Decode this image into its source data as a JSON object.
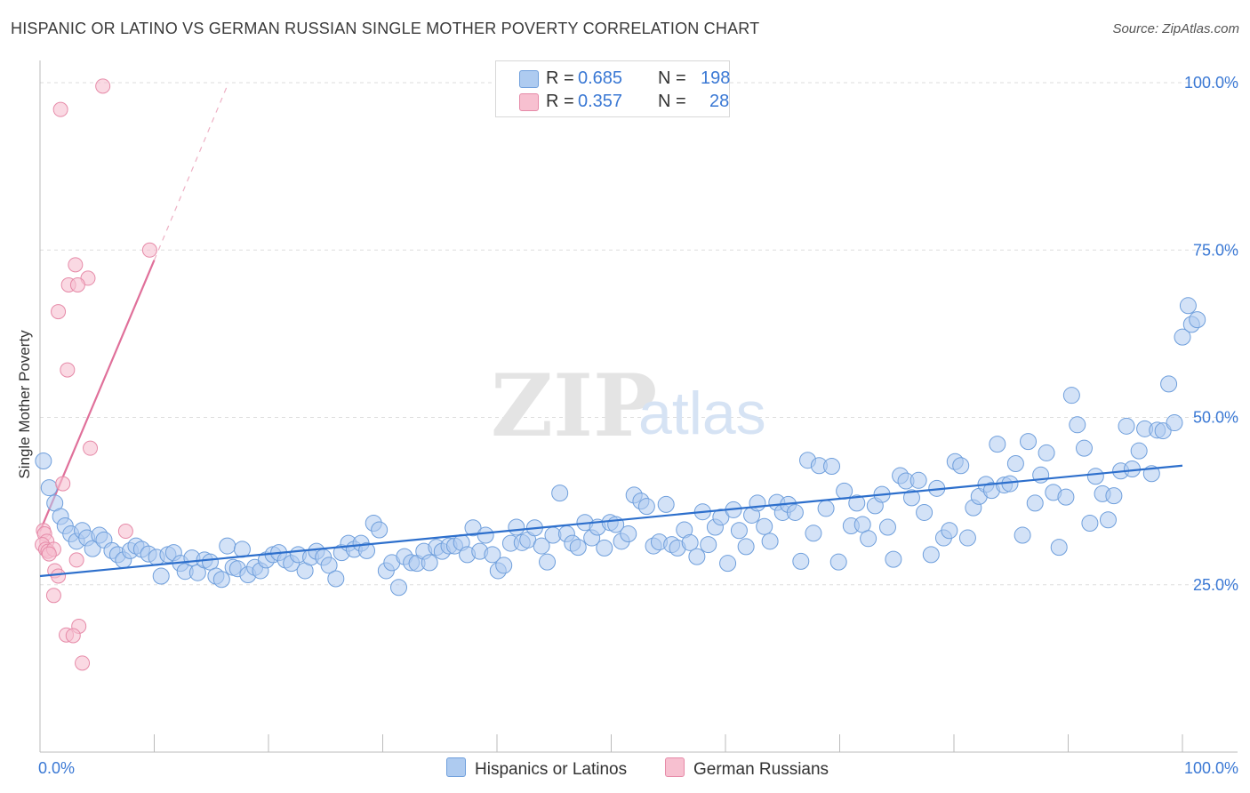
{
  "title": "HISPANIC OR LATINO VS GERMAN RUSSIAN SINGLE MOTHER POVERTY CORRELATION CHART",
  "source": "Source: ZipAtlas.com",
  "watermark": {
    "zip": "ZIP",
    "atlas": "atlas"
  },
  "colors": {
    "blue_fill": "#aecbf0",
    "blue_stroke": "#6f9fdc",
    "blue_line": "#2d6fcc",
    "pink_fill": "#f7c0d0",
    "pink_stroke": "#e68aa8",
    "pink_line": "#e0709a",
    "tick_text": "#3a78d4",
    "grid": "#dddddd"
  },
  "legend": {
    "rows": [
      {
        "r_label": "R =",
        "r_value": "0.685",
        "n_label": "N =",
        "n_value": "198",
        "series": "blue"
      },
      {
        "r_label": "R =",
        "r_value": "0.357",
        "n_label": "N =",
        "n_value": "28",
        "series": "pink"
      }
    ]
  },
  "bottom_legend": {
    "items": [
      {
        "label": "Hispanics or Latinos",
        "series": "blue"
      },
      {
        "label": "German Russians",
        "series": "pink"
      }
    ]
  },
  "chart_data": {
    "type": "scatter",
    "title": "HISPANIC OR LATINO VS GERMAN RUSSIAN SINGLE MOTHER POVERTY CORRELATION CHART",
    "xlabel": "",
    "ylabel": "Single Mother Poverty",
    "xlim": [
      0,
      100
    ],
    "ylim": [
      0,
      102
    ],
    "x_tick_labels": [
      "0.0%",
      "100.0%"
    ],
    "y_ticks": [
      25,
      50,
      75,
      100
    ],
    "y_tick_labels": [
      "25.0%",
      "50.0%",
      "75.0%",
      "100.0%"
    ],
    "grid": true,
    "series": [
      {
        "name": "Hispanics or Latinos",
        "color": "blue",
        "R": 0.685,
        "N": 198,
        "trend": {
          "x": [
            0,
            100
          ],
          "y": [
            26.3,
            42.8
          ]
        },
        "points": [
          [
            0.3,
            43.5
          ],
          [
            0.8,
            39.5
          ],
          [
            1.3,
            37.2
          ],
          [
            1.8,
            35.2
          ],
          [
            2.2,
            33.8
          ],
          [
            2.7,
            32.6
          ],
          [
            3.2,
            31.5
          ],
          [
            3.7,
            33.1
          ],
          [
            4.1,
            32.0
          ],
          [
            4.6,
            30.4
          ],
          [
            5.2,
            32.4
          ],
          [
            5.6,
            31.7
          ],
          [
            6.3,
            30.1
          ],
          [
            6.8,
            29.5
          ],
          [
            7.3,
            28.7
          ],
          [
            7.9,
            30.1
          ],
          [
            8.4,
            30.8
          ],
          [
            8.9,
            30.3
          ],
          [
            9.5,
            29.6
          ],
          [
            10.2,
            29.1
          ],
          [
            10.6,
            26.3
          ],
          [
            11.2,
            29.5
          ],
          [
            11.7,
            29.8
          ],
          [
            12.3,
            28.2
          ],
          [
            12.7,
            27.0
          ],
          [
            13.3,
            29.0
          ],
          [
            13.8,
            26.8
          ],
          [
            14.4,
            28.7
          ],
          [
            14.9,
            28.4
          ],
          [
            15.4,
            26.3
          ],
          [
            15.9,
            25.8
          ],
          [
            16.4,
            30.8
          ],
          [
            16.9,
            27.6
          ],
          [
            17.3,
            27.4
          ],
          [
            17.7,
            30.3
          ],
          [
            18.2,
            26.5
          ],
          [
            18.8,
            27.6
          ],
          [
            19.3,
            27.1
          ],
          [
            19.8,
            28.7
          ],
          [
            20.4,
            29.5
          ],
          [
            20.9,
            29.8
          ],
          [
            21.5,
            28.7
          ],
          [
            22.0,
            28.2
          ],
          [
            22.6,
            29.5
          ],
          [
            23.2,
            27.1
          ],
          [
            23.7,
            29.1
          ],
          [
            24.2,
            30.0
          ],
          [
            24.8,
            29.1
          ],
          [
            25.3,
            27.9
          ],
          [
            25.9,
            25.9
          ],
          [
            26.4,
            29.8
          ],
          [
            27.0,
            31.2
          ],
          [
            27.5,
            30.3
          ],
          [
            28.1,
            31.2
          ],
          [
            28.6,
            30.1
          ],
          [
            29.2,
            34.2
          ],
          [
            29.7,
            33.2
          ],
          [
            30.3,
            27.1
          ],
          [
            30.8,
            28.3
          ],
          [
            31.4,
            24.6
          ],
          [
            31.9,
            29.2
          ],
          [
            32.5,
            28.3
          ],
          [
            33.0,
            28.2
          ],
          [
            33.6,
            30.0
          ],
          [
            34.1,
            28.3
          ],
          [
            34.7,
            30.6
          ],
          [
            35.2,
            30.0
          ],
          [
            35.8,
            30.8
          ],
          [
            36.3,
            30.8
          ],
          [
            36.9,
            31.3
          ],
          [
            37.4,
            29.5
          ],
          [
            37.9,
            33.5
          ],
          [
            38.5,
            30.0
          ],
          [
            39.0,
            32.4
          ],
          [
            39.6,
            29.5
          ],
          [
            40.1,
            27.1
          ],
          [
            40.6,
            27.9
          ],
          [
            41.2,
            31.2
          ],
          [
            41.7,
            33.6
          ],
          [
            42.2,
            31.3
          ],
          [
            42.7,
            31.7
          ],
          [
            43.3,
            33.5
          ],
          [
            43.9,
            30.8
          ],
          [
            44.4,
            28.4
          ],
          [
            44.9,
            32.4
          ],
          [
            45.5,
            38.7
          ],
          [
            46.1,
            32.6
          ],
          [
            46.6,
            31.2
          ],
          [
            47.1,
            30.6
          ],
          [
            47.7,
            34.3
          ],
          [
            48.3,
            32.0
          ],
          [
            48.8,
            33.6
          ],
          [
            49.4,
            30.5
          ],
          [
            49.9,
            34.3
          ],
          [
            50.4,
            34.0
          ],
          [
            50.9,
            31.5
          ],
          [
            51.5,
            32.6
          ],
          [
            52.0,
            38.4
          ],
          [
            52.6,
            37.5
          ],
          [
            53.1,
            36.7
          ],
          [
            53.7,
            30.8
          ],
          [
            54.2,
            31.4
          ],
          [
            54.8,
            37.0
          ],
          [
            55.3,
            31.0
          ],
          [
            55.8,
            30.5
          ],
          [
            56.4,
            33.2
          ],
          [
            56.9,
            31.3
          ],
          [
            57.5,
            29.2
          ],
          [
            58.0,
            35.9
          ],
          [
            58.5,
            31.0
          ],
          [
            59.1,
            33.6
          ],
          [
            59.6,
            35.1
          ],
          [
            60.2,
            28.2
          ],
          [
            60.7,
            36.2
          ],
          [
            61.2,
            33.1
          ],
          [
            61.8,
            30.7
          ],
          [
            62.3,
            35.4
          ],
          [
            62.8,
            37.2
          ],
          [
            63.4,
            33.7
          ],
          [
            63.9,
            31.5
          ],
          [
            64.5,
            37.3
          ],
          [
            65.0,
            35.8
          ],
          [
            65.5,
            37.0
          ],
          [
            66.1,
            35.8
          ],
          [
            66.6,
            28.5
          ],
          [
            67.2,
            43.6
          ],
          [
            67.7,
            32.7
          ],
          [
            68.2,
            42.8
          ],
          [
            68.8,
            36.4
          ],
          [
            69.3,
            42.7
          ],
          [
            69.9,
            28.4
          ],
          [
            70.4,
            39.0
          ],
          [
            71.0,
            33.8
          ],
          [
            71.5,
            37.2
          ],
          [
            72.0,
            34.0
          ],
          [
            72.5,
            31.9
          ],
          [
            73.1,
            36.8
          ],
          [
            73.7,
            38.5
          ],
          [
            74.2,
            33.6
          ],
          [
            74.7,
            28.8
          ],
          [
            75.3,
            41.3
          ],
          [
            75.8,
            40.5
          ],
          [
            76.3,
            38.0
          ],
          [
            76.9,
            40.6
          ],
          [
            77.4,
            35.8
          ],
          [
            78.0,
            29.5
          ],
          [
            78.5,
            39.4
          ],
          [
            79.1,
            32.0
          ],
          [
            79.6,
            33.1
          ],
          [
            80.1,
            43.4
          ],
          [
            80.6,
            42.8
          ],
          [
            81.2,
            32.0
          ],
          [
            81.7,
            36.5
          ],
          [
            82.2,
            38.2
          ],
          [
            82.8,
            40.0
          ],
          [
            83.3,
            39.1
          ],
          [
            83.8,
            46.0
          ],
          [
            84.4,
            39.9
          ],
          [
            84.9,
            40.1
          ],
          [
            85.4,
            43.1
          ],
          [
            86.0,
            32.4
          ],
          [
            86.5,
            46.4
          ],
          [
            87.1,
            37.2
          ],
          [
            87.6,
            41.4
          ],
          [
            88.1,
            44.7
          ],
          [
            88.7,
            38.8
          ],
          [
            89.2,
            30.6
          ],
          [
            89.8,
            38.1
          ],
          [
            90.3,
            53.3
          ],
          [
            90.8,
            48.9
          ],
          [
            91.4,
            45.4
          ],
          [
            91.9,
            34.2
          ],
          [
            92.4,
            41.2
          ],
          [
            93.0,
            38.6
          ],
          [
            93.5,
            34.7
          ],
          [
            94.0,
            38.3
          ],
          [
            94.6,
            42.0
          ],
          [
            95.1,
            48.7
          ],
          [
            95.6,
            42.3
          ],
          [
            96.2,
            45.0
          ],
          [
            96.7,
            48.3
          ],
          [
            97.3,
            41.6
          ],
          [
            97.8,
            48.1
          ],
          [
            98.3,
            48.0
          ],
          [
            98.8,
            55.0
          ],
          [
            99.3,
            49.2
          ],
          [
            100.0,
            62.0
          ],
          [
            100.5,
            66.7
          ],
          [
            100.8,
            63.9
          ],
          [
            101.3,
            64.6
          ]
        ]
      },
      {
        "name": "German Russians",
        "color": "pink",
        "R": 0.357,
        "N": 28,
        "trend": {
          "x": [
            0,
            10
          ],
          "y": [
            33.0,
            73.5
          ]
        },
        "trend_dashed": {
          "x": [
            10,
            16.5
          ],
          "y": [
            73.5,
            100
          ]
        },
        "points": [
          [
            5.5,
            99.5
          ],
          [
            1.8,
            96.0
          ],
          [
            9.6,
            75.0
          ],
          [
            3.1,
            72.8
          ],
          [
            4.2,
            70.8
          ],
          [
            2.5,
            69.8
          ],
          [
            3.3,
            69.8
          ],
          [
            1.6,
            65.8
          ],
          [
            2.4,
            57.1
          ],
          [
            4.4,
            45.4
          ],
          [
            2.0,
            40.1
          ],
          [
            7.5,
            33.0
          ],
          [
            0.3,
            33.1
          ],
          [
            0.4,
            32.6
          ],
          [
            0.6,
            31.5
          ],
          [
            0.2,
            31.0
          ],
          [
            0.5,
            30.3
          ],
          [
            0.7,
            30.0
          ],
          [
            1.2,
            30.3
          ],
          [
            0.8,
            29.6
          ],
          [
            3.2,
            28.7
          ],
          [
            1.3,
            27.1
          ],
          [
            1.6,
            26.3
          ],
          [
            1.2,
            23.4
          ],
          [
            3.4,
            18.8
          ],
          [
            2.3,
            17.5
          ],
          [
            2.9,
            17.4
          ],
          [
            3.7,
            13.3
          ]
        ]
      }
    ]
  }
}
